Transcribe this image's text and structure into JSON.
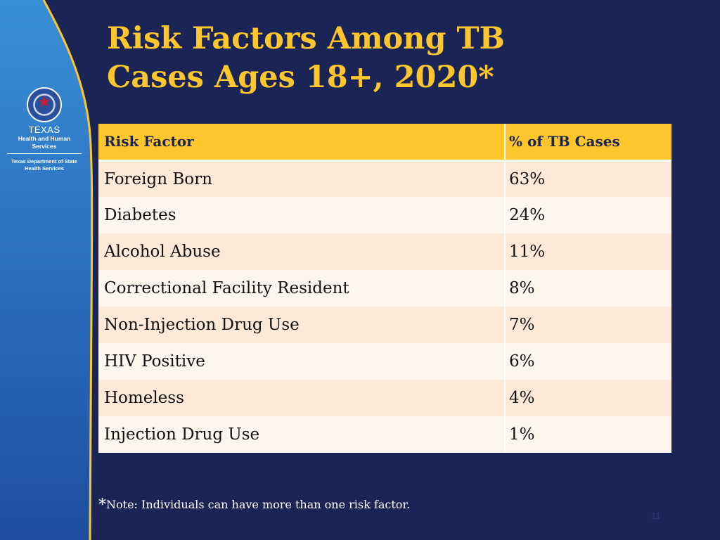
{
  "colors": {
    "background": "#1b2555",
    "accent": "#fdc62d",
    "row_odd": "#fde9d7",
    "row_even": "#fef5ec"
  },
  "logo": {
    "icon": "texas-seal-icon",
    "line1": "TEXAS",
    "line2": "Health and Human Services",
    "line3": "Texas Department of State Health Services"
  },
  "title": {
    "line1": "Risk Factors Among TB",
    "line2": "Cases Ages 18+, 2020*"
  },
  "table": {
    "headers": [
      "Risk Factor",
      "% of TB Cases"
    ],
    "rows": [
      {
        "factor": "Foreign Born",
        "percent": "63%"
      },
      {
        "factor": "Diabetes",
        "percent": "24%"
      },
      {
        "factor": "Alcohol Abuse",
        "percent": "11%"
      },
      {
        "factor": "Correctional Facility Resident",
        "percent": "8%"
      },
      {
        "factor": "Non-Injection Drug Use",
        "percent": "7%"
      },
      {
        "factor": "HIV Positive",
        "percent": "6%"
      },
      {
        "factor": "Homeless",
        "percent": "4%"
      },
      {
        "factor": "Injection Drug Use",
        "percent": "1%"
      }
    ]
  },
  "footnote": {
    "marker": "*",
    "text": "Note: Individuals can have more than one risk factor."
  },
  "page_number": "11"
}
